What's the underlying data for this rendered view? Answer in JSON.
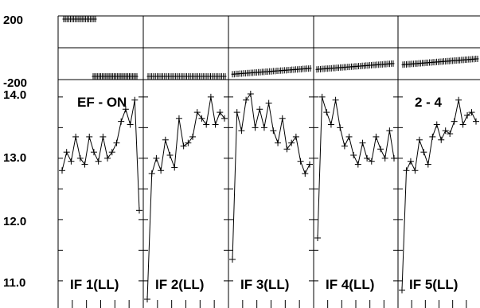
{
  "chart_data": {
    "type": "line",
    "title": "",
    "xlabel": "",
    "ylabel": "",
    "top_strip": {
      "ylim": [
        -200,
        200
      ],
      "ticks": [
        "200",
        "-200"
      ],
      "series": [
        [
          200,
          200,
          200,
          200,
          200,
          200,
          200,
          200,
          200,
          200,
          200,
          200,
          200,
          200,
          200,
          200,
          200,
          200,
          200,
          200
        ],
        [
          -200,
          -200,
          -200,
          -200,
          -200,
          -200,
          -200,
          -200,
          -200,
          -200,
          -200,
          -200,
          -200,
          -200,
          -200,
          -200,
          -200,
          -200,
          -200,
          -200,
          -200,
          -200,
          -200,
          -200,
          -200,
          -200,
          -200,
          -200,
          -200,
          -200
        ],
        [
          -200,
          -200,
          -200,
          -200,
          -200,
          -200,
          -200,
          -200,
          -200,
          -200,
          -200,
          -200,
          -200,
          -200,
          -200,
          -200,
          -200,
          -200,
          -200,
          -200,
          -200,
          -200,
          -200,
          -200,
          -200,
          -200,
          -200,
          -200,
          -200,
          -200,
          -200,
          -200,
          -200,
          -200,
          -200,
          -200,
          -200,
          -200,
          -200,
          -200,
          -200,
          -200,
          -200
        ],
        [
          -192,
          -192,
          -191,
          -191,
          -190,
          -190,
          -189,
          -189,
          -188,
          -188,
          -187,
          -187,
          -186,
          -186,
          -185,
          -185,
          -184,
          -184,
          -183,
          -183,
          -182,
          -182,
          -181,
          -181,
          -180,
          -180,
          -179,
          -179,
          -178,
          -178,
          -177,
          -177,
          -176,
          -176,
          -175,
          -175,
          -174,
          -174,
          -173,
          -173,
          -172,
          -172,
          -171
        ],
        [
          -175,
          -174,
          -174,
          -173,
          -173,
          -172,
          -172,
          -171,
          -171,
          -170,
          -170,
          -169,
          -169,
          -168,
          -168,
          -167,
          -167,
          -166,
          -166,
          -165,
          -165,
          -164,
          -164,
          -163,
          -163,
          -162,
          -162,
          -161,
          -161,
          -160,
          -160,
          -159,
          -159,
          -158,
          -158,
          -157,
          -157,
          -156,
          -156,
          -155,
          -155,
          -154,
          -154
        ],
        [
          -158,
          -157,
          -157,
          -156,
          -156,
          -155,
          -155,
          -154,
          -154,
          -153,
          -153,
          -152,
          -152,
          -151,
          -151,
          -150,
          -150,
          -149,
          -149,
          -148,
          -148,
          -147,
          -147,
          -146,
          -146,
          -145,
          -145,
          -144,
          -144,
          -143,
          -143,
          -142,
          -142,
          -141,
          -141,
          -140,
          -140,
          -139,
          -139,
          -138,
          -138,
          -137,
          -137
        ]
      ]
    },
    "main": {
      "ylim": [
        10.7,
        14.05
      ],
      "yticks": [
        "14.0",
        "13.0",
        "12.0",
        "11.0"
      ],
      "annotations": [
        "EF - ON",
        "2 - 4"
      ],
      "panels": [
        {
          "label": "IF 1(LL)",
          "values": [
            12.8,
            13.1,
            12.95,
            13.35,
            13.0,
            12.9,
            13.35,
            13.1,
            12.95,
            13.35,
            13.0,
            13.1,
            13.25,
            13.6,
            13.8,
            13.55,
            13.95,
            12.15
          ]
        },
        {
          "label": "IF 2(LL)",
          "values": [
            10.7,
            12.75,
            13.0,
            12.8,
            13.3,
            13.05,
            12.85,
            13.65,
            13.2,
            13.25,
            13.35,
            13.75,
            13.65,
            13.55,
            14.0,
            13.55,
            13.75,
            13.65
          ]
        },
        {
          "label": "IF 3(LL)",
          "values": [
            11.35,
            13.75,
            13.45,
            13.95,
            14.05,
            13.5,
            13.8,
            13.5,
            13.9,
            13.45,
            13.25,
            13.65,
            13.15,
            13.25,
            13.35,
            12.95,
            12.75,
            12.9
          ]
        },
        {
          "label": "IF 4(LL)",
          "values": [
            11.7,
            14.0,
            13.75,
            13.55,
            13.95,
            13.5,
            13.2,
            13.35,
            13.05,
            12.9,
            13.25,
            13.0,
            12.95,
            13.35,
            13.15,
            13.0,
            13.45,
            13.0
          ]
        },
        {
          "label": "IF 5(LL)",
          "values": [
            10.85,
            12.8,
            12.95,
            12.8,
            13.3,
            13.1,
            12.9,
            13.35,
            13.55,
            13.3,
            13.45,
            13.4,
            13.6,
            13.95,
            13.55,
            13.7,
            13.75,
            13.6
          ]
        }
      ]
    }
  }
}
